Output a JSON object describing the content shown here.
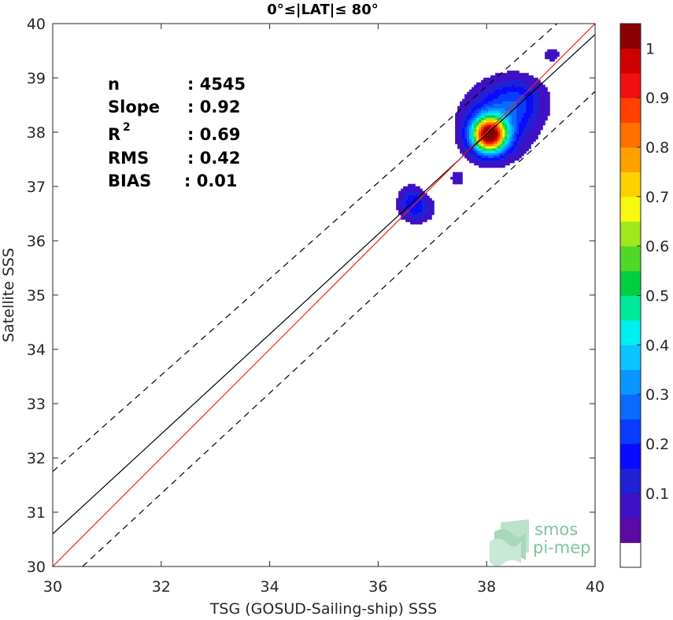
{
  "chart_data": {
    "type": "heatmap",
    "title": "0°≤|LAT|≤ 80°",
    "xlabel": "TSG (GOSUD-Sailing-ship) SSS",
    "ylabel": "Satellite SSS",
    "xlim": [
      30,
      40
    ],
    "ylim": [
      30,
      40
    ],
    "x_ticks": [
      "30",
      "32",
      "34",
      "36",
      "38",
      "40"
    ],
    "y_ticks": [
      "30",
      "31",
      "32",
      "33",
      "34",
      "35",
      "36",
      "37",
      "38",
      "39",
      "40"
    ],
    "grid": false,
    "stats": [
      {
        "label": "n",
        "value": ": 4545"
      },
      {
        "label": "Slope",
        "value": ": 0.92"
      },
      {
        "label": "R",
        "sup": "2",
        "value": ": 0.69"
      },
      {
        "label": "RMS",
        "value": ": 0.42"
      },
      {
        "label": "BIAS",
        "value": ": 0.01"
      }
    ],
    "reference_lines": {
      "identity": {
        "color": "#e8251f",
        "x": [
          30,
          40
        ],
        "y": [
          30,
          40
        ]
      },
      "fit": {
        "color": "#000000",
        "x": [
          30,
          40
        ],
        "y": [
          30.6,
          39.8
        ]
      },
      "upper_bound": {
        "style": "dashed",
        "x": [
          30,
          39.3
        ],
        "y": [
          31.75,
          40
        ]
      },
      "lower_bound": {
        "style": "dashed",
        "x": [
          30.55,
          40
        ],
        "y": [
          30,
          38.75
        ]
      }
    },
    "density_clusters": [
      {
        "name": "main",
        "cx": 38.05,
        "cy": 37.95,
        "sx": 0.22,
        "sy": 0.22,
        "amp": 1.0
      },
      {
        "name": "main-halo",
        "cx": 38.2,
        "cy": 38.2,
        "sx": 0.45,
        "sy": 0.45,
        "amp": 0.2
      },
      {
        "name": "upper-arm",
        "cx": 38.6,
        "cy": 38.6,
        "sx": 0.35,
        "sy": 0.3,
        "amp": 0.14
      },
      {
        "name": "low-cluster",
        "cx": 36.7,
        "cy": 36.6,
        "sx": 0.22,
        "sy": 0.18,
        "amp": 0.17
      },
      {
        "name": "low-arm",
        "cx": 36.6,
        "cy": 36.85,
        "sx": 0.15,
        "sy": 0.15,
        "amp": 0.09
      },
      {
        "name": "small-blob",
        "cx": 37.45,
        "cy": 37.15,
        "sx": 0.09,
        "sy": 0.11,
        "amp": 0.09
      },
      {
        "name": "top-blob",
        "cx": 39.2,
        "cy": 39.43,
        "sx": 0.1,
        "sy": 0.09,
        "amp": 0.1
      }
    ],
    "colorbar": {
      "range": [
        0,
        1
      ],
      "ticks": [
        "0.1",
        "0.2",
        "0.3",
        "0.4",
        "0.5",
        "0.6",
        "0.7",
        "0.8",
        "0.9",
        "1"
      ],
      "levels": 20,
      "colors": [
        "#ffffff",
        "#5b0aa3",
        "#3f11c4",
        "#2020d6",
        "#0a0aff",
        "#0a3cff",
        "#0a6aff",
        "#0a96ff",
        "#0ac4ff",
        "#00f0f0",
        "#00e89a",
        "#00d040",
        "#50d828",
        "#a0e81a",
        "#f8f810",
        "#ffd000",
        "#ffa000",
        "#ff7000",
        "#ff4000",
        "#f01010",
        "#d00000",
        "#8b0000"
      ]
    },
    "logo": {
      "line1": "smos",
      "line2": "pi-mep"
    }
  }
}
